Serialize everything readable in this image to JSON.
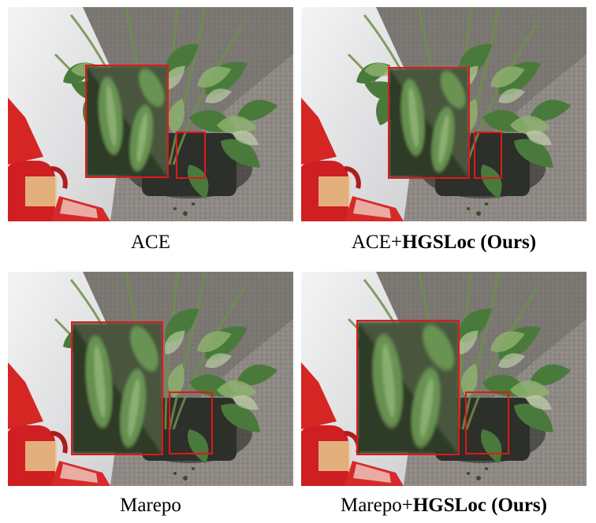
{
  "panels": [
    {
      "id": "ace",
      "caption_plain": "ACE",
      "caption_bold": ""
    },
    {
      "id": "ace-hgsloc",
      "caption_plain": "ACE+",
      "caption_bold": "HGSLoc (Ours)"
    },
    {
      "id": "marepo",
      "caption_plain": "Marepo",
      "caption_bold": ""
    },
    {
      "id": "marepo-hgsloc",
      "caption_plain": "Marepo+",
      "caption_bold": "HGSLoc (Ours)"
    }
  ],
  "colors": {
    "highlight_box": "#e01818",
    "floor": "#8f8a86",
    "wall": "#e9e9ea",
    "leaf": "#4f7a3f",
    "extinguisher": "#d42222"
  }
}
